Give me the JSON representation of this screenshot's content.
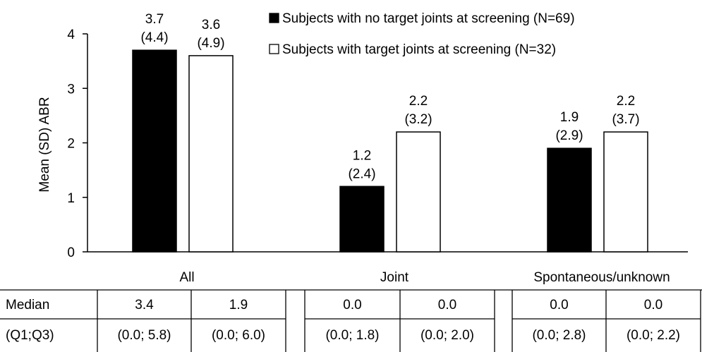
{
  "chart_data": {
    "type": "bar",
    "title": "",
    "xlabel": "",
    "ylabel": "Mean (SD) ABR",
    "ylim": [
      0,
      4
    ],
    "yticks": [
      0,
      1,
      2,
      3,
      4
    ],
    "grid": false,
    "legend_placement": "top-right",
    "categories": [
      "All",
      "Joint",
      "Spontaneous/unknown"
    ],
    "series": [
      {
        "name": "Subjects with no target joints at screening (N=69)",
        "fill": "#000000",
        "values": [
          3.7,
          1.2,
          1.9
        ],
        "sd": [
          4.4,
          2.4,
          2.9
        ],
        "value_labels": [
          "3.7",
          "1.2",
          "1.9"
        ],
        "sd_labels": [
          "(4.4)",
          "(2.4)",
          "(2.9)"
        ]
      },
      {
        "name": "Subjects with target joints at screening (N=32)",
        "fill": "#ffffff",
        "values": [
          3.6,
          2.2,
          2.2
        ],
        "sd": [
          4.9,
          3.2,
          3.7
        ],
        "value_labels": [
          "3.6",
          "2.2",
          "2.2"
        ],
        "sd_labels": [
          "(4.9)",
          "(3.2)",
          "(3.7)"
        ]
      }
    ],
    "summary_table": {
      "row_headers": [
        "Median",
        "(Q1;Q3)"
      ],
      "groups": [
        {
          "category": "All",
          "median": [
            "3.4",
            "1.9"
          ],
          "q1q3": [
            "(0.0; 5.8)",
            "(0.0; 6.0)"
          ]
        },
        {
          "category": "Joint",
          "median": [
            "0.0",
            "0.0"
          ],
          "q1q3": [
            "(0.0; 1.8)",
            "(0.0; 2.0)"
          ]
        },
        {
          "category": "Spontaneous/unknown",
          "median": [
            "0.0",
            "0.0"
          ],
          "q1q3": [
            "(0.0; 2.8)",
            "(0.0; 2.2)"
          ]
        }
      ]
    }
  }
}
